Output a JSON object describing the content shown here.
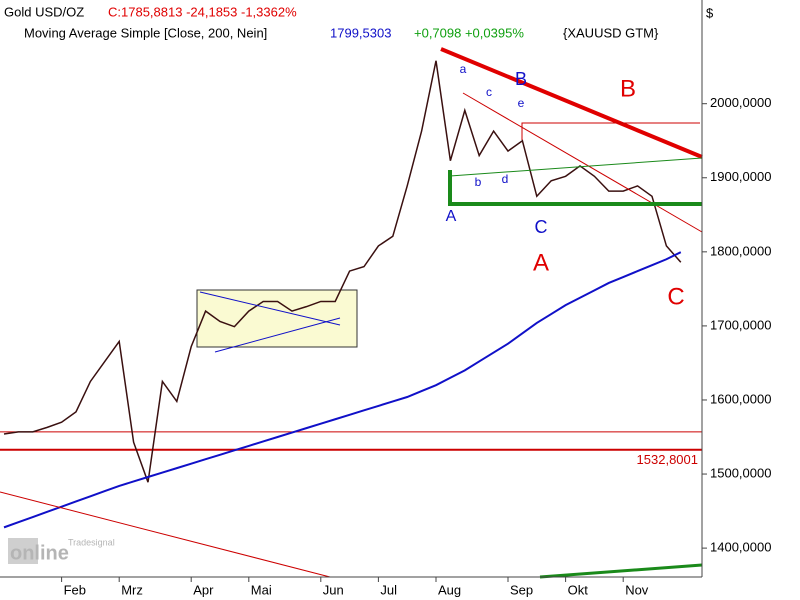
{
  "chart_data": {
    "type": "line",
    "header": {
      "symbol": "Gold USD/OZ",
      "quote": "C:1785,8813 -24,1853 -1,3362%",
      "indicator": "Moving Average Simple [Close, 200, Nein]",
      "indicator_value": "1799,5303",
      "indicator_change": "+0,7098 +0,0395%",
      "indicator_source": "{XAUUSD GTM}"
    },
    "currency_label": "$",
    "categories": [
      null,
      null,
      null,
      null,
      "Feb",
      null,
      null,
      null,
      "Mrz",
      null,
      null,
      null,
      null,
      "Apr",
      null,
      null,
      null,
      "Mai",
      null,
      null,
      null,
      null,
      "Jun",
      null,
      null,
      null,
      "Jul",
      null,
      null,
      null,
      "Aug",
      null,
      null,
      null,
      null,
      "Sep",
      null,
      null,
      null,
      "Okt",
      null,
      null,
      null,
      "Nov",
      null,
      null,
      null,
      null
    ],
    "series": [
      {
        "name": "Gold USD/OZ",
        "color": "#3a1010",
        "values": [
          1554,
          1557,
          1557,
          1563,
          1570,
          1584,
          1625,
          1652,
          1679,
          1543,
          1489,
          1625,
          1598,
          1672,
          1720,
          1706,
          1699,
          1720,
          1733,
          1733,
          1720,
          1726,
          1733,
          1733,
          1774,
          1780,
          1808,
          1821,
          1889,
          1963,
          2058,
          1923,
          1991,
          1930,
          1963,
          1936,
          1950,
          1875,
          1896,
          1902,
          1916,
          1902,
          1882,
          1882,
          1889,
          1875,
          1808,
          1785.8813
        ]
      },
      {
        "name": "Moving Average Simple [Close, 200, Nein]",
        "color": "#1010c8",
        "values": [
          1428,
          1435,
          1442,
          1449,
          1456,
          1463,
          1470,
          1477,
          1484,
          1490,
          1496,
          1502,
          1508,
          1514,
          1520,
          1526,
          1532,
          1538,
          1544,
          1550,
          1556,
          1562,
          1568,
          1574,
          1580,
          1586,
          1592,
          1598,
          1604,
          1612,
          1620,
          1630,
          1640,
          1652,
          1664,
          1676,
          1690,
          1704,
          1716,
          1728,
          1738,
          1748,
          1758,
          1766,
          1774,
          1782,
          1790,
          1799.5303
        ]
      }
    ],
    "horizontal_lines": [
      {
        "value": 1557,
        "color": "#cc0000"
      },
      {
        "value": 1532.8001,
        "label": "1532,8001",
        "color": "#cc0000"
      }
    ],
    "annotations": [
      {
        "text": "a",
        "color": "#1010c8"
      },
      {
        "text": "b",
        "color": "#1010c8"
      },
      {
        "text": "c",
        "color": "#1010c8"
      },
      {
        "text": "d",
        "color": "#1010c8"
      },
      {
        "text": "e",
        "color": "#1010c8"
      },
      {
        "text": "B",
        "color": "#1010c8"
      },
      {
        "text": "A",
        "color": "#1010c8"
      },
      {
        "text": "C",
        "color": "#1010c8"
      },
      {
        "text": "B",
        "color": "#e00000"
      },
      {
        "text": "A",
        "color": "#e00000"
      },
      {
        "text": "C",
        "color": "#e00000"
      }
    ],
    "watermark": {
      "top": "Tradesignal",
      "main": "online"
    },
    "ylim": [
      1361,
      2140
    ],
    "yticks": [
      {
        "value": 1400,
        "label": "1400,0000"
      },
      {
        "value": 1500,
        "label": "1500,0000"
      },
      {
        "value": 1600,
        "label": "1600,0000"
      },
      {
        "value": 1700,
        "label": "1700,0000"
      },
      {
        "value": 1800,
        "label": "1800,0000"
      },
      {
        "value": 1900,
        "label": "1900,0000"
      },
      {
        "value": 2000,
        "label": "2000,0000"
      }
    ]
  }
}
